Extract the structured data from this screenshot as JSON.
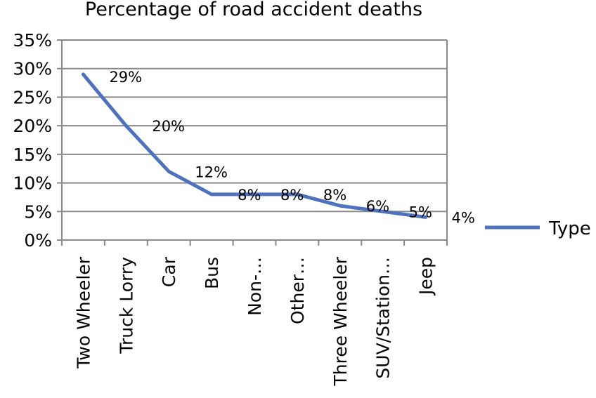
{
  "chart_data": {
    "type": "line",
    "title": "Percentage of road accident deaths",
    "xlabel": "",
    "ylabel": "",
    "categories": [
      "Two Wheeler",
      "Truck Lorry",
      "Car",
      "Bus",
      "Non-…",
      "Other…",
      "Three Wheeler",
      "SUV/Station…",
      "Jeep"
    ],
    "series": [
      {
        "name": "Type",
        "values": [
          29,
          20,
          12,
          8,
          8,
          8,
          6,
          5,
          4
        ],
        "data_labels": [
          "29%",
          "20%",
          "12%",
          "8%",
          "8%",
          "8%",
          "6%",
          "5%",
          "4%"
        ],
        "color": "#4F72BE"
      }
    ],
    "ylim": [
      0,
      35
    ],
    "yticks": [
      "0%",
      "5%",
      "10%",
      "15%",
      "20%",
      "25%",
      "30%",
      "35%"
    ],
    "grid": "horizontal",
    "legend": "right"
  }
}
